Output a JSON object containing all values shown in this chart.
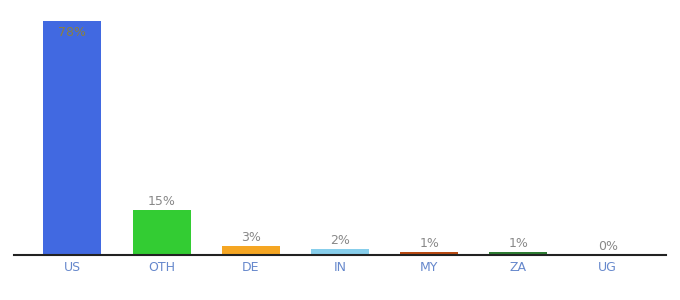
{
  "categories": [
    "US",
    "OTH",
    "DE",
    "IN",
    "MY",
    "ZA",
    "UG"
  ],
  "values": [
    78,
    15,
    3,
    2,
    1,
    1,
    0
  ],
  "labels": [
    "78%",
    "15%",
    "3%",
    "2%",
    "1%",
    "1%",
    "0%"
  ],
  "bar_colors": [
    "#4169e1",
    "#33cc33",
    "#f5a623",
    "#87ceeb",
    "#b94a12",
    "#2e7d32",
    "#cccccc"
  ],
  "label_color_inside": "#8b8040",
  "label_color_outside": "#888888",
  "x_tick_color": "#6688cc",
  "background_color": "#ffffff",
  "ylim": [
    0,
    82
  ],
  "bar_width": 0.65
}
